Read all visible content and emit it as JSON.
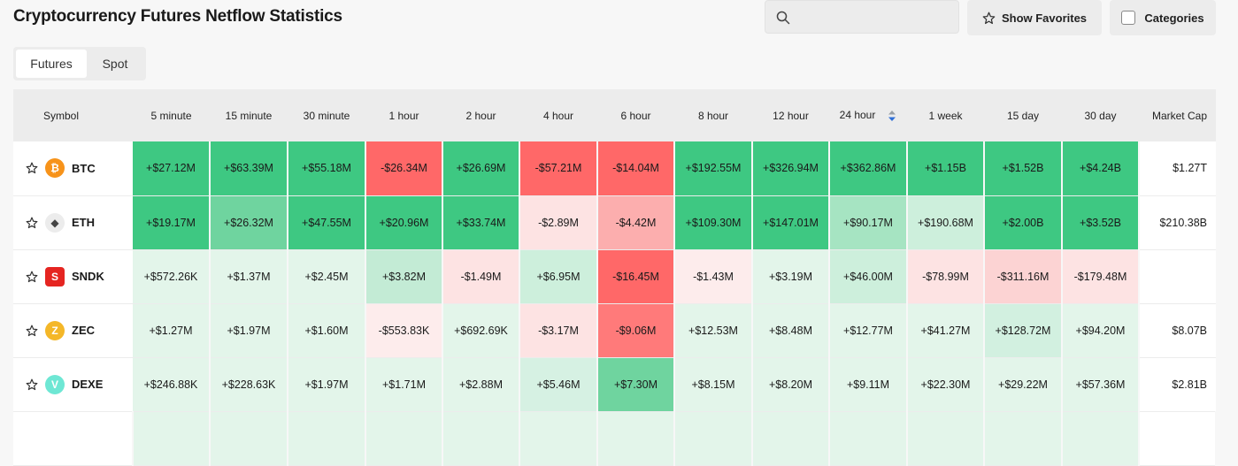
{
  "page": {
    "title": "Cryptocurrency Futures Netflow Statistics"
  },
  "search": {
    "placeholder": "",
    "value": ""
  },
  "toolbar": {
    "favorites_label": "Show Favorites",
    "categories_label": "Categories"
  },
  "tabs": [
    {
      "label": "Futures",
      "active": true
    },
    {
      "label": "Spot",
      "active": false
    }
  ],
  "table": {
    "columns": [
      "Symbol",
      "5 minute",
      "15 minute",
      "30 minute",
      "1 hour",
      "2 hour",
      "4 hour",
      "6 hour",
      "8 hour",
      "12 hour",
      "24 hour",
      "1 week",
      "15 day",
      "30 day",
      "Market Cap"
    ],
    "sorted_column": "24 hour",
    "rows": [
      {
        "symbol": "BTC",
        "icon": "bitcoin-icon",
        "icon_color": "#f7931a",
        "icon_glyph": "₿",
        "values": [
          "+$27.12M",
          "+$63.39M",
          "+$55.18M",
          "-$26.34M",
          "+$26.69M",
          "-$57.21M",
          "-$14.04M",
          "+$192.55M",
          "+$326.94M",
          "+$362.86M",
          "+$1.15B",
          "+$1.52B",
          "+$4.24B"
        ],
        "colors": [
          "#3ec882",
          "#3ec882",
          "#3ec882",
          "#ff6868",
          "#3ec882",
          "#ff6868",
          "#ff6868",
          "#3ec882",
          "#3ec882",
          "#3ec882",
          "#3ec882",
          "#3ec882",
          "#3ec882"
        ],
        "market_cap": "$1.27T"
      },
      {
        "symbol": "ETH",
        "icon": "ethereum-icon",
        "icon_color": "#ececec",
        "icon_glyph": "◆",
        "values": [
          "+$19.17M",
          "+$26.32M",
          "+$47.55M",
          "+$20.96M",
          "+$33.74M",
          "-$2.89M",
          "-$4.42M",
          "+$109.30M",
          "+$147.01M",
          "+$90.17M",
          "+$190.68M",
          "+$2.00B",
          "+$3.52B"
        ],
        "colors": [
          "#3ec882",
          "#6fd49f",
          "#3ec882",
          "#3ec882",
          "#3ec882",
          "#fde3e3",
          "#fcaeae",
          "#3ec882",
          "#3ec882",
          "#a6e4c2",
          "#cdefdc",
          "#3ec882",
          "#3ec882"
        ],
        "market_cap": "$210.38B"
      },
      {
        "symbol": "SNDK",
        "icon": "sandisk-icon",
        "icon_color": "#e52521",
        "icon_glyph": "S",
        "values": [
          "+$572.26K",
          "+$1.37M",
          "+$2.45M",
          "+$3.82M",
          "-$1.49M",
          "+$6.95M",
          "-$16.45M",
          "-$1.43M",
          "+$3.19M",
          "+$46.00M",
          "-$78.99M",
          "-$311.16M",
          "-$179.48M"
        ],
        "colors": [
          "#e3f5ea",
          "#e3f5ea",
          "#e3f5ea",
          "#c3ebd5",
          "#fde3e3",
          "#cdefdc",
          "#ff6868",
          "#fdecec",
          "#e3f5ea",
          "#cdefdc",
          "#fde3e3",
          "#fcd3d3",
          "#fde3e3"
        ],
        "market_cap": ""
      },
      {
        "symbol": "ZEC",
        "icon": "zcash-icon",
        "icon_color": "#f4b728",
        "icon_glyph": "Z",
        "values": [
          "+$1.27M",
          "+$1.97M",
          "+$1.60M",
          "-$553.83K",
          "+$692.69K",
          "-$3.17M",
          "-$9.06M",
          "+$12.53M",
          "+$8.48M",
          "+$12.77M",
          "+$41.27M",
          "+$128.72M",
          "+$94.20M"
        ],
        "colors": [
          "#e3f5ea",
          "#e3f5ea",
          "#e3f5ea",
          "#fdecec",
          "#e3f5ea",
          "#fde3e3",
          "#ff7a7a",
          "#e3f5ea",
          "#e3f5ea",
          "#e3f5ea",
          "#e3f5ea",
          "#d2f0e0",
          "#e3f5ea"
        ],
        "market_cap": "$8.07B"
      },
      {
        "symbol": "DEXE",
        "icon": "dexe-icon",
        "icon_color": "#6ee7d4",
        "icon_glyph": "V",
        "values": [
          "+$246.88K",
          "+$228.63K",
          "+$1.97M",
          "+$1.71M",
          "+$2.88M",
          "+$5.46M",
          "+$7.30M",
          "+$8.15M",
          "+$8.20M",
          "+$9.11M",
          "+$22.30M",
          "+$29.22M",
          "+$57.36M"
        ],
        "colors": [
          "#e3f5ea",
          "#e3f5ea",
          "#e3f5ea",
          "#e3f5ea",
          "#e3f5ea",
          "#d6f1e3",
          "#6fd49f",
          "#e3f5ea",
          "#e3f5ea",
          "#e3f5ea",
          "#e3f5ea",
          "#e3f5ea",
          "#e3f5ea"
        ],
        "market_cap": "$2.81B"
      }
    ]
  }
}
